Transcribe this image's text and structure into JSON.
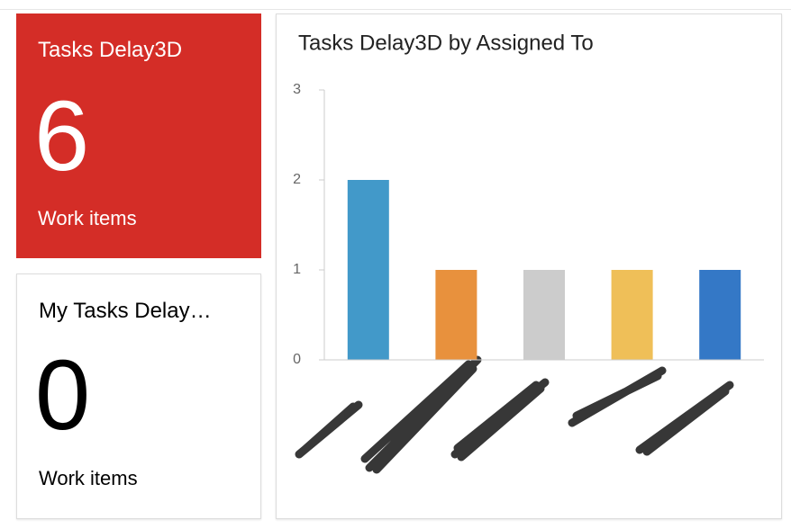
{
  "tiles": [
    {
      "title": "Tasks Delay3D",
      "count": 6,
      "subtitle": "Work items"
    },
    {
      "title": "My Tasks Delay…",
      "count": 0,
      "subtitle": "Work items"
    }
  ],
  "chart_data": {
    "type": "bar",
    "title": "Tasks Delay3D by Assigned To",
    "categories": [
      null,
      null,
      null,
      null,
      null
    ],
    "values": [
      2,
      1,
      1,
      1,
      1
    ],
    "colors": [
      "#4299c9",
      "#e8913d",
      "#cccccc",
      "#efbf58",
      "#3478c6"
    ],
    "ylim": [
      0,
      3
    ],
    "yticks": [
      0,
      1,
      2,
      3
    ],
    "grid": false
  }
}
